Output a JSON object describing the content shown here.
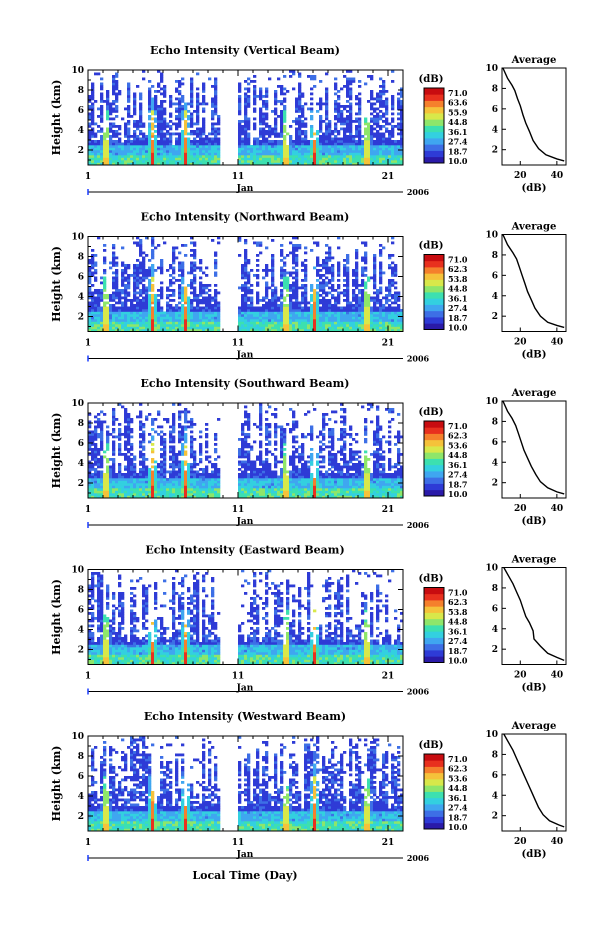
{
  "figure": {
    "xlabel_common": "Local Time (Day)",
    "colormap": [
      "#2a1aa8",
      "#2e3bd6",
      "#3d6fe6",
      "#3fa6f0",
      "#33d0e0",
      "#3ce0b0",
      "#8ee66a",
      "#d8e84a",
      "#f5c23a",
      "#f5802c",
      "#e8301e",
      "#c80c10"
    ],
    "panels": [
      {
        "title": "Echo Intensity (Vertical Beam)"
      },
      {
        "title": "Echo Intensity (Northward Beam)"
      },
      {
        "title": "Echo Intensity (Southward Beam)"
      },
      {
        "title": "Echo Intensity (Eastward Beam)"
      },
      {
        "title": "Echo Intensity (Westward Beam)"
      }
    ]
  },
  "chart_data": [
    {
      "type": "heatmap",
      "title": "Echo Intensity (Vertical Beam)",
      "ylabel": "Height (km)",
      "x_ticks": [
        "1",
        "11",
        "21"
      ],
      "x_month": "Jan",
      "x_year": "2006",
      "ylim": [
        0.5,
        10
      ],
      "y_ticks": [
        "2",
        "4",
        "6",
        "8",
        "10"
      ],
      "colorbar_unit": "(dB)",
      "colorbar_labels": [
        "71.0",
        "63.6",
        "55.9",
        "44.8",
        "36.1",
        "27.4",
        "18.7",
        "10.0"
      ],
      "data_gap_days": [
        9.8,
        11.1
      ],
      "intense_days": [
        2.2,
        5.3,
        7.5,
        14.2,
        16.1,
        19.6
      ],
      "average_profile": {
        "title": "Average",
        "xlabel": "(dB)",
        "xticks": [
          "20",
          "40"
        ],
        "yticks": [
          "2",
          "4",
          "6",
          "8",
          "10"
        ],
        "xlim": [
          10,
          45
        ],
        "ylim": [
          0.5,
          10
        ],
        "dB": [
          10.5,
          13,
          15.5,
          17,
          18.5,
          20,
          21.5,
          23,
          25,
          27,
          30,
          34,
          40,
          44
        ],
        "height_km": [
          10,
          9,
          8.3,
          7.8,
          7,
          6.3,
          5.4,
          4.6,
          3.8,
          2.9,
          2.1,
          1.5,
          1.1,
          0.9
        ]
      }
    },
    {
      "type": "heatmap",
      "title": "Echo Intensity (Northward Beam)",
      "ylabel": "Height (km)",
      "x_ticks": [
        "1",
        "11",
        "21"
      ],
      "x_month": "Jan",
      "x_year": "2006",
      "ylim": [
        0.5,
        10
      ],
      "y_ticks": [
        "2",
        "4",
        "6",
        "8",
        "10"
      ],
      "colorbar_unit": "(dB)",
      "colorbar_labels": [
        "71.0",
        "62.3",
        "53.8",
        "44.8",
        "36.1",
        "27.4",
        "18.7",
        "10.0"
      ],
      "data_gap_days": [
        9.8,
        11.1
      ],
      "intense_days": [
        2.2,
        5.3,
        7.5,
        14.2,
        16.1,
        19.6
      ],
      "average_profile": {
        "title": "Average",
        "xlabel": "(dB)",
        "xticks": [
          "20",
          "40"
        ],
        "yticks": [
          "2",
          "4",
          "6",
          "8",
          "10"
        ],
        "xlim": [
          10,
          45
        ],
        "ylim": [
          0.5,
          10
        ],
        "dB": [
          10.5,
          13,
          16,
          18,
          19.5,
          21,
          22.5,
          24,
          26,
          28,
          31,
          35,
          40,
          44
        ],
        "height_km": [
          10,
          9,
          8.2,
          7.6,
          6.8,
          6,
          5.2,
          4.4,
          3.6,
          2.8,
          2,
          1.4,
          1.1,
          0.9
        ]
      }
    },
    {
      "type": "heatmap",
      "title": "Echo Intensity (Southward Beam)",
      "ylabel": "Height (km)",
      "x_ticks": [
        "1",
        "11",
        "21"
      ],
      "x_month": "Jan",
      "x_year": "2006",
      "ylim": [
        0.5,
        10
      ],
      "y_ticks": [
        "2",
        "4",
        "6",
        "8",
        "10"
      ],
      "colorbar_unit": "(dB)",
      "colorbar_labels": [
        "71.0",
        "62.3",
        "53.6",
        "44.8",
        "36.1",
        "27.4",
        "18.7",
        "10.0"
      ],
      "data_gap_days": [
        9.8,
        11.1
      ],
      "intense_days": [
        2.2,
        5.3,
        7.5,
        14.2,
        16.1,
        19.6
      ],
      "average_profile": {
        "title": "Average",
        "xlabel": "(dB)",
        "xticks": [
          "20",
          "40"
        ],
        "yticks": [
          "2",
          "4",
          "6",
          "8",
          "10"
        ],
        "xlim": [
          10,
          45
        ],
        "ylim": [
          0.5,
          10
        ],
        "dB": [
          10.5,
          13,
          15.5,
          17.5,
          19,
          20.5,
          22,
          24,
          26,
          28.5,
          31,
          35,
          40,
          44
        ],
        "height_km": [
          10,
          9,
          8.3,
          7.6,
          6.8,
          6,
          5.2,
          4.4,
          3.6,
          2.8,
          2.1,
          1.5,
          1.1,
          0.9
        ]
      }
    },
    {
      "type": "heatmap",
      "title": "Echo Intensity (Eastward Beam)",
      "ylabel": "Height (km)",
      "x_ticks": [
        "1",
        "11",
        "21"
      ],
      "x_month": "Jan",
      "x_year": "2006",
      "ylim": [
        0.5,
        10
      ],
      "y_ticks": [
        "2",
        "4",
        "6",
        "8",
        "10"
      ],
      "colorbar_unit": "(dB)",
      "colorbar_labels": [
        "71.0",
        "62.3",
        "53.8",
        "44.8",
        "36.1",
        "27.4",
        "18.7",
        "10.0"
      ],
      "data_gap_days": [
        9.8,
        11.1
      ],
      "intense_days": [
        2.2,
        5.3,
        7.5,
        14.2,
        16.1,
        19.6
      ],
      "average_profile": {
        "title": "Average",
        "xlabel": "(dB)",
        "xticks": [
          "20",
          "40"
        ],
        "yticks": [
          "2",
          "4",
          "6",
          "8",
          "10"
        ],
        "xlim": [
          10,
          45
        ],
        "ylim": [
          0.5,
          10
        ],
        "dB": [
          11,
          13.5,
          16,
          18,
          20,
          21.5,
          23,
          25,
          27,
          27.5,
          31,
          35,
          40,
          44
        ],
        "height_km": [
          10,
          9.2,
          8.4,
          7.6,
          6.8,
          6,
          5.2,
          4.6,
          3.8,
          3,
          2.3,
          1.6,
          1.2,
          0.9
        ]
      }
    },
    {
      "type": "heatmap",
      "title": "Echo Intensity (Westward Beam)",
      "ylabel": "Height (km)",
      "x_ticks": [
        "1",
        "11",
        "21"
      ],
      "x_month": "Jan",
      "x_year": "2006",
      "ylim": [
        0.5,
        10
      ],
      "y_ticks": [
        "2",
        "4",
        "6",
        "8",
        "10"
      ],
      "colorbar_unit": "(dB)",
      "colorbar_labels": [
        "71.0",
        "62.3",
        "53.6",
        "44.8",
        "36.1",
        "27.4",
        "18.7",
        "10.0"
      ],
      "data_gap_days": [
        9.8,
        11.1
      ],
      "intense_days": [
        2.2,
        5.3,
        7.5,
        14.2,
        16.1,
        19.6
      ],
      "average_profile": {
        "title": "Average",
        "xlabel": "(dB)",
        "xticks": [
          "20",
          "40"
        ],
        "yticks": [
          "2",
          "4",
          "6",
          "8",
          "10"
        ],
        "xlim": [
          10,
          45
        ],
        "ylim": [
          0.5,
          10
        ],
        "dB": [
          11,
          13.5,
          16,
          18,
          20,
          22,
          24,
          26,
          28,
          30,
          32.5,
          36,
          41,
          44
        ],
        "height_km": [
          10,
          9.2,
          8.4,
          7.6,
          6.8,
          6,
          5.2,
          4.4,
          3.6,
          2.8,
          2.1,
          1.5,
          1.1,
          0.9
        ]
      }
    }
  ]
}
